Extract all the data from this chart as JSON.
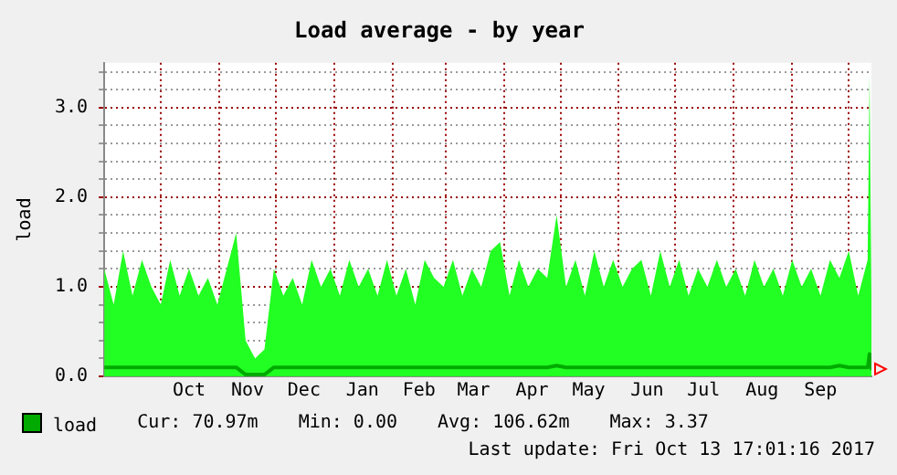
{
  "chart_data": {
    "type": "line",
    "title": "Load average - by year",
    "ylabel": "load",
    "x": [
      "2016-09-01",
      "2016-09-06",
      "2016-09-11",
      "2016-09-16",
      "2016-09-21",
      "2016-09-26",
      "2016-10-01",
      "2016-10-06",
      "2016-10-11",
      "2016-10-16",
      "2016-10-21",
      "2016-10-26",
      "2016-10-31",
      "2016-11-05",
      "2016-11-10",
      "2016-11-15",
      "2016-11-20",
      "2016-11-25",
      "2016-11-30",
      "2016-12-05",
      "2016-12-10",
      "2016-12-15",
      "2016-12-20",
      "2016-12-25",
      "2016-12-30",
      "2017-01-04",
      "2017-01-09",
      "2017-01-14",
      "2017-01-19",
      "2017-01-24",
      "2017-01-29",
      "2017-02-03",
      "2017-02-08",
      "2017-02-13",
      "2017-02-18",
      "2017-02-23",
      "2017-02-28",
      "2017-03-05",
      "2017-03-10",
      "2017-03-15",
      "2017-03-20",
      "2017-03-25",
      "2017-03-30",
      "2017-04-04",
      "2017-04-09",
      "2017-04-14",
      "2017-04-19",
      "2017-04-24",
      "2017-04-29",
      "2017-05-04",
      "2017-05-09",
      "2017-05-14",
      "2017-05-19",
      "2017-05-24",
      "2017-05-29",
      "2017-06-03",
      "2017-06-08",
      "2017-06-13",
      "2017-06-18",
      "2017-06-23",
      "2017-06-28",
      "2017-07-03",
      "2017-07-08",
      "2017-07-13",
      "2017-07-18",
      "2017-07-23",
      "2017-07-28",
      "2017-08-02",
      "2017-08-07",
      "2017-08-12",
      "2017-08-17",
      "2017-08-22",
      "2017-08-27",
      "2017-09-01",
      "2017-09-06",
      "2017-09-11",
      "2017-09-16",
      "2017-09-21",
      "2017-09-26",
      "2017-10-01",
      "2017-10-06",
      "2017-10-11",
      "2017-10-12",
      "2017-10-13"
    ],
    "series": [
      {
        "type": "area",
        "color": "#22ff22",
        "values": [
          1.2,
          0.8,
          1.4,
          0.9,
          1.3,
          1.0,
          0.8,
          1.3,
          0.9,
          1.2,
          0.9,
          1.1,
          0.8,
          1.2,
          1.6,
          0.4,
          0.2,
          0.3,
          1.2,
          0.9,
          1.1,
          0.8,
          1.3,
          1.0,
          1.2,
          0.9,
          1.3,
          1.0,
          1.2,
          0.9,
          1.3,
          0.9,
          1.2,
          0.8,
          1.3,
          1.1,
          1.0,
          1.3,
          0.9,
          1.2,
          1.0,
          1.4,
          1.5,
          0.9,
          1.3,
          1.0,
          1.2,
          1.1,
          1.8,
          1.0,
          1.3,
          0.9,
          1.4,
          1.0,
          1.3,
          1.0,
          1.2,
          1.3,
          0.9,
          1.4,
          1.0,
          1.3,
          0.9,
          1.2,
          1.0,
          1.3,
          1.0,
          1.2,
          0.9,
          1.3,
          1.0,
          1.2,
          0.9,
          1.3,
          1.0,
          1.2,
          0.9,
          1.3,
          1.1,
          1.4,
          0.9,
          1.3,
          3.37,
          0.9
        ]
      },
      {
        "type": "line",
        "name": "load",
        "color": "#00aa00",
        "values": [
          0.1,
          0.1,
          0.1,
          0.1,
          0.1,
          0.1,
          0.1,
          0.1,
          0.1,
          0.1,
          0.1,
          0.1,
          0.1,
          0.1,
          0.1,
          0.02,
          0.02,
          0.02,
          0.1,
          0.1,
          0.1,
          0.1,
          0.1,
          0.1,
          0.1,
          0.1,
          0.1,
          0.1,
          0.1,
          0.1,
          0.1,
          0.1,
          0.1,
          0.1,
          0.1,
          0.1,
          0.1,
          0.1,
          0.1,
          0.1,
          0.1,
          0.1,
          0.1,
          0.1,
          0.1,
          0.1,
          0.1,
          0.1,
          0.12,
          0.1,
          0.1,
          0.1,
          0.1,
          0.1,
          0.1,
          0.1,
          0.1,
          0.1,
          0.1,
          0.1,
          0.1,
          0.1,
          0.1,
          0.1,
          0.1,
          0.1,
          0.1,
          0.1,
          0.1,
          0.1,
          0.1,
          0.1,
          0.1,
          0.1,
          0.1,
          0.1,
          0.1,
          0.1,
          0.12,
          0.1,
          0.1,
          0.1,
          0.25,
          0.07
        ]
      }
    ],
    "xlim": [
      "2016-09-01",
      "2017-10-13"
    ],
    "xticks": [
      {
        "value": "2016-10-01",
        "label": null
      },
      {
        "value": "2016-10-16",
        "label": "Oct"
      },
      {
        "value": "2016-11-01",
        "label": null
      },
      {
        "value": "2016-11-16",
        "label": "Nov"
      },
      {
        "value": "2016-12-01",
        "label": null
      },
      {
        "value": "2016-12-16",
        "label": "Dec"
      },
      {
        "value": "2017-01-01",
        "label": null
      },
      {
        "value": "2017-01-16",
        "label": "Jan"
      },
      {
        "value": "2017-02-01",
        "label": null
      },
      {
        "value": "2017-02-15",
        "label": "Feb"
      },
      {
        "value": "2017-03-01",
        "label": null
      },
      {
        "value": "2017-03-16",
        "label": "Mar"
      },
      {
        "value": "2017-04-01",
        "label": null
      },
      {
        "value": "2017-04-16",
        "label": "Apr"
      },
      {
        "value": "2017-05-01",
        "label": null
      },
      {
        "value": "2017-05-16",
        "label": "May"
      },
      {
        "value": "2017-06-01",
        "label": null
      },
      {
        "value": "2017-06-16",
        "label": "Jun"
      },
      {
        "value": "2017-07-01",
        "label": null
      },
      {
        "value": "2017-07-16",
        "label": "Jul"
      },
      {
        "value": "2017-08-01",
        "label": null
      },
      {
        "value": "2017-08-16",
        "label": "Aug"
      },
      {
        "value": "2017-09-01",
        "label": null
      },
      {
        "value": "2017-09-16",
        "label": "Sep"
      },
      {
        "value": "2017-10-01",
        "label": null
      }
    ],
    "ylim": [
      0,
      3.5
    ],
    "yticks": [
      {
        "value": 0,
        "label": "0.0"
      },
      {
        "value": 0.2,
        "label": null
      },
      {
        "value": 0.4,
        "label": null
      },
      {
        "value": 0.6,
        "label": null
      },
      {
        "value": 0.8,
        "label": null
      },
      {
        "value": 1,
        "label": "1.0"
      },
      {
        "value": 1.2,
        "label": null
      },
      {
        "value": 1.4,
        "label": null
      },
      {
        "value": 1.6,
        "label": null
      },
      {
        "value": 1.8,
        "label": null
      },
      {
        "value": 2,
        "label": "2.0"
      },
      {
        "value": 2.2,
        "label": null
      },
      {
        "value": 2.4,
        "label": null
      },
      {
        "value": 2.6,
        "label": null
      },
      {
        "value": 2.8,
        "label": null
      },
      {
        "value": 3,
        "label": "3.0"
      },
      {
        "value": 3.2,
        "label": null
      },
      {
        "value": 3.4,
        "label": null
      }
    ],
    "grid": true,
    "legend": "bottom left",
    "marker": "none",
    "annotations": [
      "Cur: 70.97m",
      "Min: 0.00",
      "Avg: 106.62m",
      "Max: 3.37",
      "Last update: Fri Oct 13 17:01:16 2017"
    ]
  }
}
